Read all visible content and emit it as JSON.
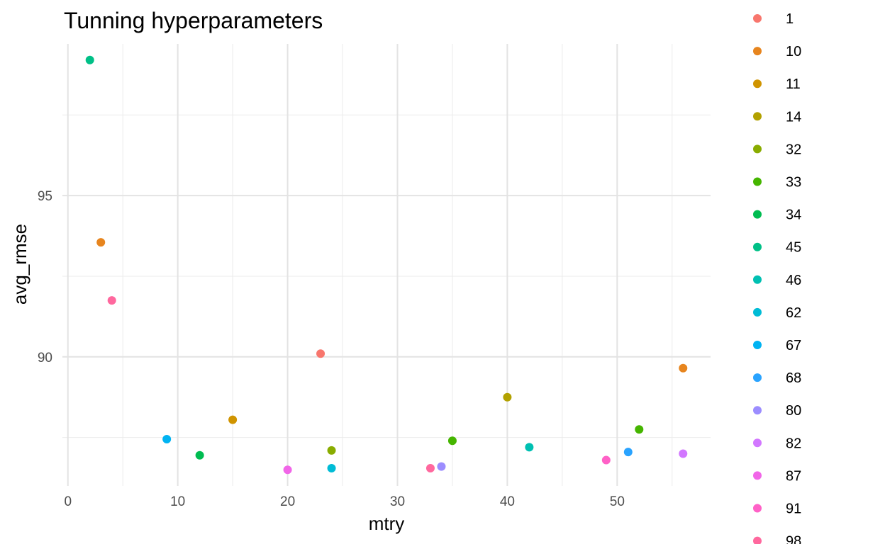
{
  "chart_data": {
    "type": "scatter",
    "title": "Tunning hyperparameters",
    "xlabel": "mtry",
    "ylabel": "avg_rmse",
    "xlim": [
      -0.5,
      58.5
    ],
    "ylim": [
      86.0,
      99.7
    ],
    "x_ticks": [
      0,
      10,
      20,
      30,
      40,
      50
    ],
    "y_ticks": [
      90,
      95
    ],
    "grid": true,
    "legend_position": "right",
    "series": [
      {
        "name": "1",
        "color": "#F8766D",
        "x": [
          23
        ],
        "y": [
          90.1
        ]
      },
      {
        "name": "10",
        "color": "#E7851E",
        "x": [
          3,
          56
        ],
        "y": [
          93.55,
          89.65
        ]
      },
      {
        "name": "11",
        "color": "#D09400",
        "x": [
          15
        ],
        "y": [
          88.05
        ]
      },
      {
        "name": "14",
        "color": "#B2A100",
        "x": [
          40
        ],
        "y": [
          88.75
        ]
      },
      {
        "name": "32",
        "color": "#89AC00",
        "x": [
          24
        ],
        "y": [
          87.1
        ]
      },
      {
        "name": "33",
        "color": "#45B500",
        "x": [
          35,
          52
        ],
        "y": [
          87.4,
          87.75
        ]
      },
      {
        "name": "34",
        "color": "#00BC51",
        "x": [
          12
        ],
        "y": [
          86.95
        ]
      },
      {
        "name": "45",
        "color": "#00C087",
        "x": [
          2
        ],
        "y": [
          99.2
        ]
      },
      {
        "name": "46",
        "color": "#00C0B2",
        "x": [
          42
        ],
        "y": [
          87.2
        ]
      },
      {
        "name": "62",
        "color": "#00BCD6",
        "x": [
          24
        ],
        "y": [
          86.55
        ]
      },
      {
        "name": "67",
        "color": "#00B3F2",
        "x": [
          9
        ],
        "y": [
          87.45
        ]
      },
      {
        "name": "68",
        "color": "#29A3FF",
        "x": [
          51
        ],
        "y": [
          87.05
        ]
      },
      {
        "name": "80",
        "color": "#9C8DFF",
        "x": [
          34
        ],
        "y": [
          86.6
        ]
      },
      {
        "name": "82",
        "color": "#D277FF",
        "x": [
          56
        ],
        "y": [
          87.0
        ]
      },
      {
        "name": "87",
        "color": "#F166E8",
        "x": [
          20
        ],
        "y": [
          86.5
        ]
      },
      {
        "name": "91",
        "color": "#FF61C7",
        "x": [
          49
        ],
        "y": [
          86.8
        ]
      },
      {
        "name": "98",
        "color": "#FF689E",
        "x": [
          4,
          33
        ],
        "y": [
          91.75,
          86.55
        ]
      }
    ]
  }
}
